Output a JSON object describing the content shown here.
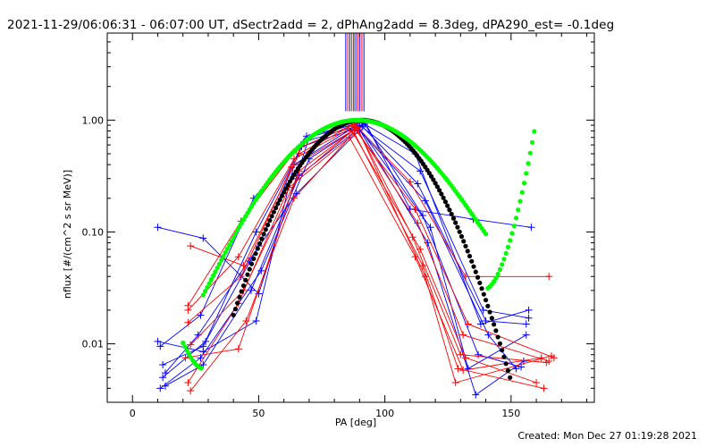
{
  "chart_data": {
    "type": "line",
    "title": "2021-11-29/06:06:31 - 06:07:00 UT, dSectr2add = 2, dPhAng2add = 8.3deg, dPA290_est= -0.1deg",
    "xlabel": "PA [deg]",
    "ylabel": "nflux [#/(cm^2 s sr MeV)]",
    "xlim": [
      -10,
      183
    ],
    "ylim": [
      0.003,
      6.0
    ],
    "y_scale": "log",
    "x_ticks": [
      0,
      50,
      100,
      150
    ],
    "x_tick_labels": [
      "0",
      "50",
      "100",
      "150"
    ],
    "y_ticks": [
      0.01,
      0.1,
      1.0
    ],
    "y_tick_labels": [
      "0.01",
      "0.10",
      "1.00"
    ],
    "grid": false,
    "footer": "Created: Mon Dec 27 01:19:28 2021",
    "colors": {
      "blue": "#0000ff",
      "red": "#ff0000",
      "green": "#00ff00",
      "black": "#000000"
    },
    "vertical_lines": {
      "x": [
        84.5,
        85.3,
        86.1,
        86.9,
        87.7,
        88.5,
        89.3,
        90.1,
        90.9,
        91.7
      ],
      "colors": [
        "#0000ff",
        "#ff0000",
        "#0000ff",
        "#ff0000",
        "#000000",
        "#0000ff",
        "#ff0000",
        "#0000ff",
        "#ff0000",
        "#0000ff"
      ],
      "y_from": 1.2,
      "y_to": 6.0
    },
    "series": [
      {
        "color": "#0000ff",
        "x": [
          10,
          28,
          50,
          70,
          92,
          110,
          135,
          158
        ],
        "y": [
          0.11,
          0.088,
          0.028,
          0.7,
          0.98,
          0.16,
          0.13,
          0.11
        ]
      },
      {
        "color": "#0000ff",
        "x": [
          11,
          27,
          48,
          69,
          91,
          112,
          138,
          157
        ],
        "y": [
          0.0095,
          0.018,
          0.2,
          0.72,
          0.95,
          0.5,
          0.015,
          0.02
        ]
      },
      {
        "color": "#0000ff",
        "x": [
          12,
          28,
          49,
          68,
          90,
          114,
          139,
          157
        ],
        "y": [
          0.0065,
          0.0095,
          0.1,
          0.64,
          0.9,
          0.35,
          0.02,
          0.017
        ]
      },
      {
        "color": "#0000ff",
        "x": [
          12,
          29,
          50,
          67,
          91,
          113,
          140,
          156
        ],
        "y": [
          0.005,
          0.0105,
          0.075,
          0.58,
          0.88,
          0.27,
          0.016,
          0.015
        ]
      },
      {
        "color": "#0000ff",
        "x": [
          11,
          27,
          51,
          70,
          89,
          116,
          141,
          152
        ],
        "y": [
          0.004,
          0.0075,
          0.045,
          0.45,
          0.85,
          0.19,
          0.012,
          0.006
        ]
      },
      {
        "color": "#0000ff",
        "x": [
          13,
          28,
          47,
          66,
          92,
          115,
          137,
          154
        ],
        "y": [
          0.0042,
          0.0065,
          0.03,
          0.32,
          0.92,
          0.14,
          0.008,
          0.0062
        ]
      },
      {
        "color": "#0000ff",
        "x": [
          13,
          26,
          46,
          65,
          90,
          117,
          136,
          155
        ],
        "y": [
          0.0055,
          0.012,
          0.055,
          0.22,
          0.82,
          0.08,
          0.0035,
          0.007
        ]
      },
      {
        "color": "#0000ff",
        "x": [
          10,
          28,
          49,
          64,
          89,
          118,
          133,
          156
        ],
        "y": [
          0.0105,
          0.0085,
          0.016,
          0.4,
          0.9,
          0.11,
          0.006,
          0.012
        ]
      },
      {
        "color": "#ff0000",
        "x": [
          23,
          44,
          66,
          88,
          110,
          132,
          165
        ],
        "y": [
          0.075,
          0.05,
          0.5,
          0.92,
          0.28,
          0.04,
          0.04
        ]
      },
      {
        "color": "#ff0000",
        "x": [
          22,
          43,
          65,
          87,
          112,
          133,
          167
        ],
        "y": [
          0.022,
          0.125,
          0.55,
          0.9,
          0.16,
          0.015,
          0.0075
        ]
      },
      {
        "color": "#ff0000",
        "x": [
          22,
          42,
          64,
          88,
          113,
          131,
          165
        ],
        "y": [
          0.02,
          0.06,
          0.45,
          0.88,
          0.12,
          0.012,
          0.007
        ]
      },
      {
        "color": "#ff0000",
        "x": [
          22,
          43,
          63,
          89,
          111,
          130,
          164
        ],
        "y": [
          0.0155,
          0.04,
          0.38,
          0.85,
          0.09,
          0.008,
          0.0068
        ]
      },
      {
        "color": "#ff0000",
        "x": [
          23,
          44,
          65,
          87,
          114,
          132,
          160
        ],
        "y": [
          0.0098,
          0.03,
          0.3,
          0.8,
          0.07,
          0.0075,
          0.0045
        ]
      },
      {
        "color": "#ff0000",
        "x": [
          22,
          42,
          62,
          88,
          115,
          129,
          163
        ],
        "y": [
          0.0045,
          0.023,
          0.25,
          0.76,
          0.05,
          0.006,
          0.004
        ]
      },
      {
        "color": "#ff0000",
        "x": [
          23,
          45,
          64,
          86,
          112,
          131,
          162
        ],
        "y": [
          0.0038,
          0.016,
          0.2,
          0.7,
          0.06,
          0.0058,
          0.0075
        ]
      },
      {
        "color": "#ff0000",
        "x": [
          21,
          42,
          66,
          89,
          116,
          128,
          166
        ],
        "y": [
          0.0075,
          0.009,
          0.35,
          0.86,
          0.04,
          0.0045,
          0.0078
        ]
      }
    ],
    "fits": {
      "green": {
        "color": "#00ff00",
        "x_from": 20,
        "x_to": 160,
        "peak_x": 89,
        "peak_y": 1.0,
        "sigma_left": 22,
        "sigma_right": 22,
        "wing_min": 0.006,
        "rise_from_x": 140,
        "rise_to_y": 1.0
      },
      "black": {
        "color": "#000000",
        "x_from": 40,
        "x_to": 150,
        "peak_x": 91,
        "peak_y": 1.0,
        "sigma": 18
      }
    }
  }
}
